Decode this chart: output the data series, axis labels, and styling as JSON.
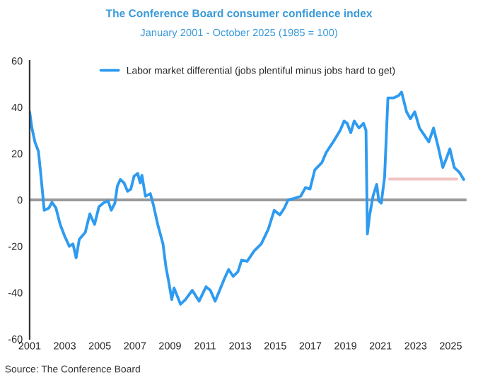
{
  "chart_data": {
    "type": "line",
    "title": "The Conference Board consumer confidence index",
    "subtitle": "January 2001 - October 2025 (1985 = 100)",
    "annotations": [
      "Source: The Conference Board"
    ],
    "series": [
      {
        "name": "Labor market differential (jobs plentiful minus jobs hard to get)",
        "color": "#2e9bf0",
        "x": [
          2001.0,
          2001.13,
          2001.3,
          2001.5,
          2001.65,
          2001.83,
          2002.1,
          2002.27,
          2002.5,
          2002.74,
          2003.0,
          2003.26,
          2003.47,
          2003.65,
          2003.83,
          2004.17,
          2004.43,
          2004.7,
          2004.95,
          2005.2,
          2005.47,
          2005.65,
          2005.86,
          2006.0,
          2006.17,
          2006.38,
          2006.58,
          2006.77,
          2006.95,
          2007.16,
          2007.3,
          2007.4,
          2007.6,
          2007.88,
          2008.06,
          2008.3,
          2008.6,
          2008.77,
          2008.92,
          2009.1,
          2009.23,
          2009.44,
          2009.6,
          2009.88,
          2010.27,
          2010.66,
          2011.05,
          2011.3,
          2011.57,
          2011.83,
          2012.1,
          2012.34,
          2012.6,
          2012.87,
          2013.08,
          2013.4,
          2013.8,
          2014.2,
          2014.6,
          2014.94,
          2015.26,
          2015.52,
          2015.73,
          2016.05,
          2016.45,
          2016.72,
          2016.98,
          2017.25,
          2017.65,
          2017.9,
          2018.3,
          2018.7,
          2018.92,
          2019.1,
          2019.3,
          2019.5,
          2019.77,
          2020.03,
          2020.17,
          2020.25,
          2020.38,
          2020.57,
          2020.78,
          2020.9,
          2021.04,
          2021.23,
          2021.42,
          2021.76,
          2022.03,
          2022.2,
          2022.48,
          2022.7,
          2022.95,
          2023.22,
          2023.49,
          2023.75,
          2024.02,
          2024.28,
          2024.55,
          2024.76,
          2024.95,
          2025.2,
          2025.48,
          2025.74
        ],
        "values": [
          38,
          31,
          25,
          21,
          10,
          -4.5,
          -3.5,
          -1,
          -3.5,
          -10.6,
          -15.7,
          -20,
          -19,
          -25,
          -17,
          -14,
          -6,
          -10.6,
          -3,
          -1.4,
          -0.4,
          -4.5,
          -1.4,
          6,
          8.8,
          7.3,
          3.7,
          4.7,
          10.2,
          11.4,
          7.3,
          10.6,
          1.6,
          2.7,
          -2.4,
          -10.6,
          -19,
          -29,
          -35,
          -43,
          -38,
          -42,
          -45,
          -43,
          -39,
          -43.7,
          -37.5,
          -39,
          -43.7,
          -39,
          -34,
          -30,
          -33,
          -31,
          -26,
          -26.5,
          -22,
          -19,
          -12.7,
          -4.5,
          -6.5,
          -3.5,
          0,
          0.6,
          1.6,
          5.3,
          4.7,
          12.9,
          16,
          20.4,
          25,
          30,
          34,
          33,
          29,
          34,
          31,
          33,
          30,
          -14.7,
          -6.5,
          1.6,
          6.7,
          -0.4,
          -1.4,
          9.8,
          44,
          44,
          45,
          46.5,
          38,
          35,
          38,
          31,
          28,
          25,
          31,
          23,
          14,
          18,
          22,
          14,
          12,
          8.8
        ]
      },
      {
        "color": "#f2c4c4",
        "x": [
          2025.35,
          2021.5
        ],
        "values": [
          9,
          9
        ]
      }
    ],
    "xlim": [
      2001,
      2025.9
    ],
    "xticks": [
      {
        "value": 2001,
        "label": "2001"
      },
      {
        "value": 2003,
        "label": "2003"
      },
      {
        "value": 2005,
        "label": "2005"
      },
      {
        "value": 2007,
        "label": "2007"
      },
      {
        "value": 2009,
        "label": "2009"
      },
      {
        "value": 2011,
        "label": "2011"
      },
      {
        "value": 2013,
        "label": "2013"
      },
      {
        "value": 2015,
        "label": "2015"
      },
      {
        "value": 2017,
        "label": "2017"
      },
      {
        "value": 2019,
        "label": "2019"
      },
      {
        "value": 2021,
        "label": "2021"
      },
      {
        "value": 2023,
        "label": "2023"
      },
      {
        "value": 2025,
        "label": "2025"
      }
    ],
    "ylim": [
      -60,
      60
    ],
    "yticks": [
      -60,
      -40,
      -20,
      0,
      20,
      40,
      60
    ],
    "ref_lines": [
      {
        "axis": "y",
        "value": 0,
        "color": "#999999"
      }
    ],
    "grid": false,
    "legend": "top"
  }
}
